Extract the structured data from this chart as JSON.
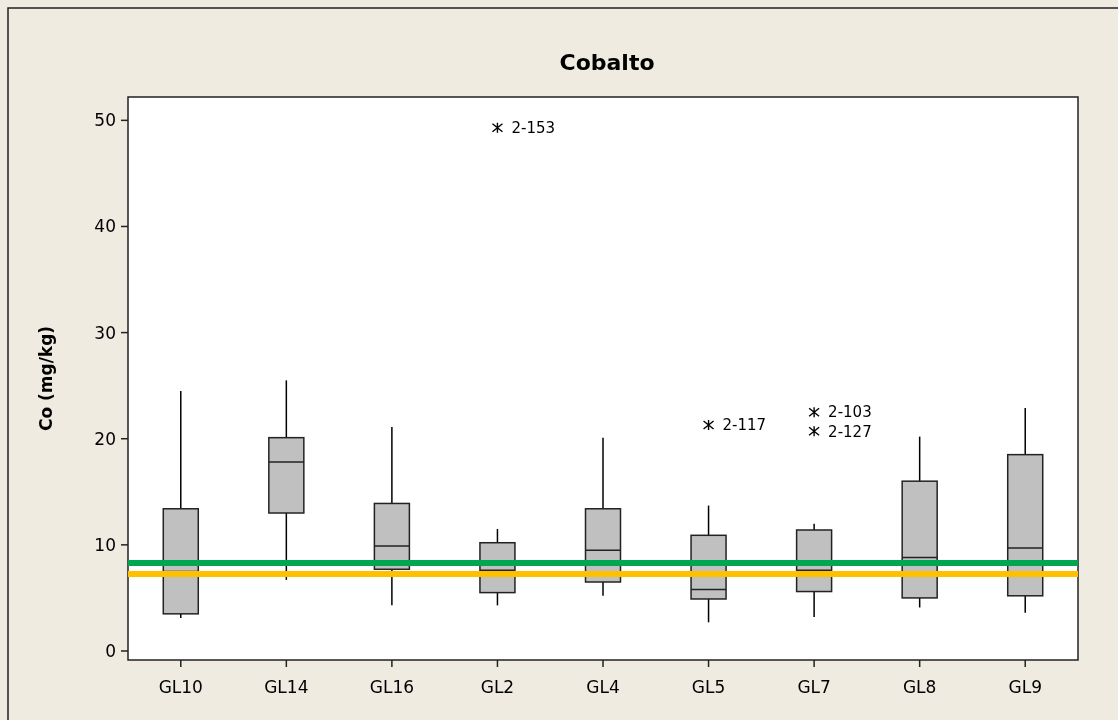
{
  "chart_data": {
    "type": "box",
    "title": "Cobalto",
    "ylabel": "Co (mg/kg)",
    "categories": [
      "GL10",
      "GL14",
      "GL16",
      "GL2",
      "GL4",
      "GL5",
      "GL7",
      "GL8",
      "GL9"
    ],
    "boxes": [
      {
        "low": 3.1,
        "q1": 3.5,
        "median": 7.5,
        "q3": 13.4,
        "high": 24.5
      },
      {
        "low": 6.7,
        "q1": 13.0,
        "median": 17.8,
        "q3": 20.1,
        "high": 25.5
      },
      {
        "low": 4.3,
        "q1": 7.7,
        "median": 9.9,
        "q3": 13.9,
        "high": 21.1
      },
      {
        "low": 4.3,
        "q1": 5.5,
        "median": 7.6,
        "q3": 10.2,
        "high": 11.5,
        "outliers": [
          49.3
        ]
      },
      {
        "low": 5.2,
        "q1": 6.5,
        "median": 9.5,
        "q3": 13.4,
        "high": 20.1
      },
      {
        "low": 2.7,
        "q1": 4.9,
        "median": 5.8,
        "q3": 10.9,
        "high": 13.7,
        "outliers": [
          21.3
        ]
      },
      {
        "low": 3.2,
        "q1": 5.6,
        "median": 7.6,
        "q3": 11.4,
        "high": 12.0,
        "outliers": [
          22.5,
          20.7
        ]
      },
      {
        "low": 4.1,
        "q1": 5.0,
        "median": 8.8,
        "q3": 16.0,
        "high": 20.2
      },
      {
        "low": 3.6,
        "q1": 5.2,
        "median": 9.7,
        "q3": 18.5,
        "high": 22.9
      }
    ],
    "color": "#c0c0c0",
    "ylim": [
      -0.85,
      52.2
    ],
    "yticks": [
      0,
      10,
      20,
      30,
      40,
      50
    ],
    "ref_lines": [
      {
        "axis": "y",
        "value": 8.3,
        "color": "#00a651"
      },
      {
        "axis": "y",
        "value": 7.25,
        "color": "#ffc000"
      }
    ],
    "annotations": [
      "2-153",
      "2-117",
      "2-103",
      "2-127"
    ]
  }
}
